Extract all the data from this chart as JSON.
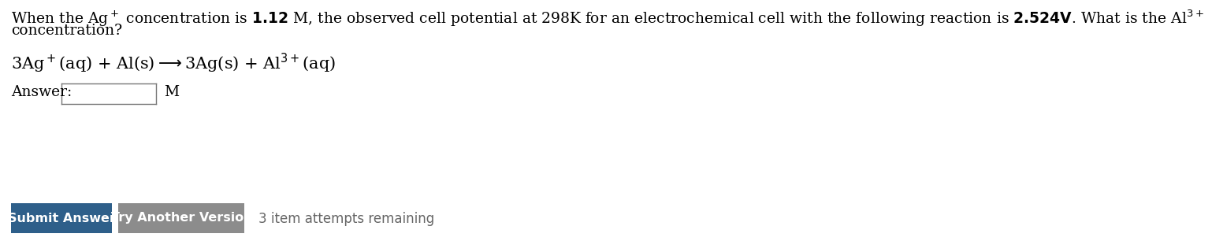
{
  "bg_color": "#ffffff",
  "text_color": "#000000",
  "btn1_text": "Submit Answer",
  "btn1_color": "#2e5f8a",
  "btn2_text": "Try Another Version",
  "btn2_color": "#8c8c8c",
  "attempts_text": "3 item attempts remaining",
  "font_size_main": 13.5,
  "font_size_reaction": 15,
  "font_size_btn": 11.5,
  "font_size_attempts": 12,
  "line1": "When the Ag$^+$ concentration is $\\mathbf{1.12}$ M, the observed cell potential at 298K for an electrochemical cell with the following reaction is $\\mathbf{2.524V}$. What is the Al$^{3+}$",
  "line2": "concentration?",
  "reaction": "3Ag$^+$(aq) + Al(s)$\\longrightarrow$3Ag(s) + Al$^{3+}$(aq)",
  "answer_label": "Answer:",
  "answer_unit": "M"
}
